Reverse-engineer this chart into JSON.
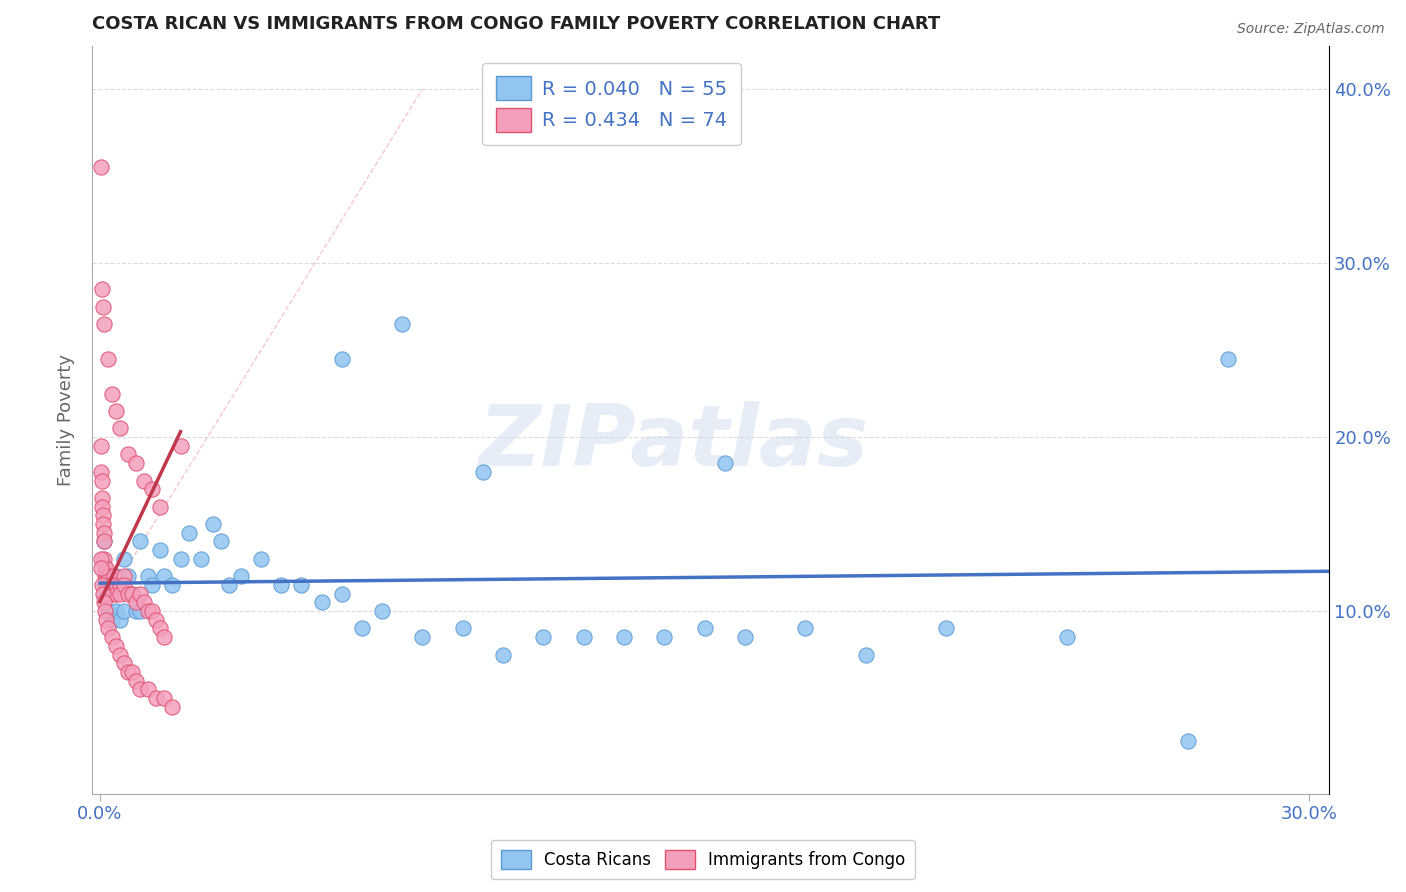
{
  "title": "COSTA RICAN VS IMMIGRANTS FROM CONGO FAMILY POVERTY CORRELATION CHART",
  "source": "Source: ZipAtlas.com",
  "ylabel": "Family Poverty",
  "xlim": [
    -0.002,
    0.305
  ],
  "ylim": [
    -0.005,
    0.425
  ],
  "yticks": [
    0.1,
    0.2,
    0.3,
    0.4
  ],
  "xtick_positions": [
    0.0,
    0.3
  ],
  "xtick_labels": [
    "0.0%",
    "30.0%"
  ],
  "ytick_labels_right": [
    "10.0%",
    "20.0%",
    "30.0%",
    "40.0%"
  ],
  "legend_line1": "R = 0.040   N = 55",
  "legend_line2": "R = 0.434   N = 74",
  "color_blue": "#92C5F0",
  "color_blue_edge": "#5B9BD5",
  "color_pink": "#F4A0BC",
  "color_pink_edge": "#E05070",
  "color_trendline_blue": "#4472C4",
  "color_trendline_pink": "#C0384C",
  "color_dashed_ref": "#D0C8C8",
  "color_hgrid": "#CCCCCC",
  "color_text_blue": "#4472C4",
  "color_title": "#222222",
  "background_color": "#FFFFFF",
  "watermark": "ZIPatlas",
  "blue_x": [
    0.001,
    0.001,
    0.002,
    0.002,
    0.003,
    0.003,
    0.004,
    0.004,
    0.005,
    0.005,
    0.006,
    0.006,
    0.007,
    0.008,
    0.009,
    0.01,
    0.01,
    0.012,
    0.013,
    0.015,
    0.016,
    0.018,
    0.02,
    0.022,
    0.025,
    0.028,
    0.03,
    0.032,
    0.035,
    0.04,
    0.045,
    0.05,
    0.055,
    0.06,
    0.065,
    0.07,
    0.08,
    0.09,
    0.1,
    0.11,
    0.12,
    0.13,
    0.14,
    0.15,
    0.16,
    0.175,
    0.19,
    0.21,
    0.24,
    0.27,
    0.06,
    0.075,
    0.095,
    0.155,
    0.28
  ],
  "blue_y": [
    0.14,
    0.11,
    0.12,
    0.1,
    0.115,
    0.095,
    0.12,
    0.1,
    0.115,
    0.095,
    0.13,
    0.1,
    0.12,
    0.11,
    0.1,
    0.14,
    0.1,
    0.12,
    0.115,
    0.135,
    0.12,
    0.115,
    0.13,
    0.145,
    0.13,
    0.15,
    0.14,
    0.115,
    0.12,
    0.13,
    0.115,
    0.115,
    0.105,
    0.11,
    0.09,
    0.1,
    0.085,
    0.09,
    0.075,
    0.085,
    0.085,
    0.085,
    0.085,
    0.09,
    0.085,
    0.09,
    0.075,
    0.09,
    0.085,
    0.025,
    0.245,
    0.265,
    0.18,
    0.185,
    0.245
  ],
  "pink_x": [
    0.0002,
    0.0003,
    0.0004,
    0.0005,
    0.0006,
    0.0007,
    0.0008,
    0.0009,
    0.001,
    0.001,
    0.0012,
    0.0013,
    0.0014,
    0.0015,
    0.0016,
    0.0017,
    0.0018,
    0.002,
    0.002,
    0.0022,
    0.0025,
    0.003,
    0.003,
    0.0035,
    0.004,
    0.004,
    0.005,
    0.005,
    0.006,
    0.006,
    0.007,
    0.008,
    0.009,
    0.01,
    0.011,
    0.012,
    0.013,
    0.014,
    0.015,
    0.016,
    0.0002,
    0.0003,
    0.0005,
    0.0007,
    0.001,
    0.0012,
    0.0015,
    0.002,
    0.003,
    0.004,
    0.005,
    0.006,
    0.007,
    0.008,
    0.009,
    0.01,
    0.012,
    0.014,
    0.016,
    0.018,
    0.0003,
    0.0005,
    0.0008,
    0.001,
    0.002,
    0.003,
    0.004,
    0.005,
    0.007,
    0.009,
    0.011,
    0.013,
    0.015,
    0.02
  ],
  "pink_y": [
    0.195,
    0.18,
    0.175,
    0.165,
    0.16,
    0.155,
    0.15,
    0.145,
    0.14,
    0.13,
    0.125,
    0.12,
    0.115,
    0.125,
    0.12,
    0.115,
    0.11,
    0.12,
    0.115,
    0.12,
    0.115,
    0.115,
    0.11,
    0.12,
    0.115,
    0.11,
    0.115,
    0.11,
    0.12,
    0.115,
    0.11,
    0.11,
    0.105,
    0.11,
    0.105,
    0.1,
    0.1,
    0.095,
    0.09,
    0.085,
    0.13,
    0.125,
    0.115,
    0.11,
    0.105,
    0.1,
    0.095,
    0.09,
    0.085,
    0.08,
    0.075,
    0.07,
    0.065,
    0.065,
    0.06,
    0.055,
    0.055,
    0.05,
    0.05,
    0.045,
    0.355,
    0.285,
    0.275,
    0.265,
    0.245,
    0.225,
    0.215,
    0.205,
    0.19,
    0.185,
    0.175,
    0.17,
    0.16,
    0.195
  ]
}
